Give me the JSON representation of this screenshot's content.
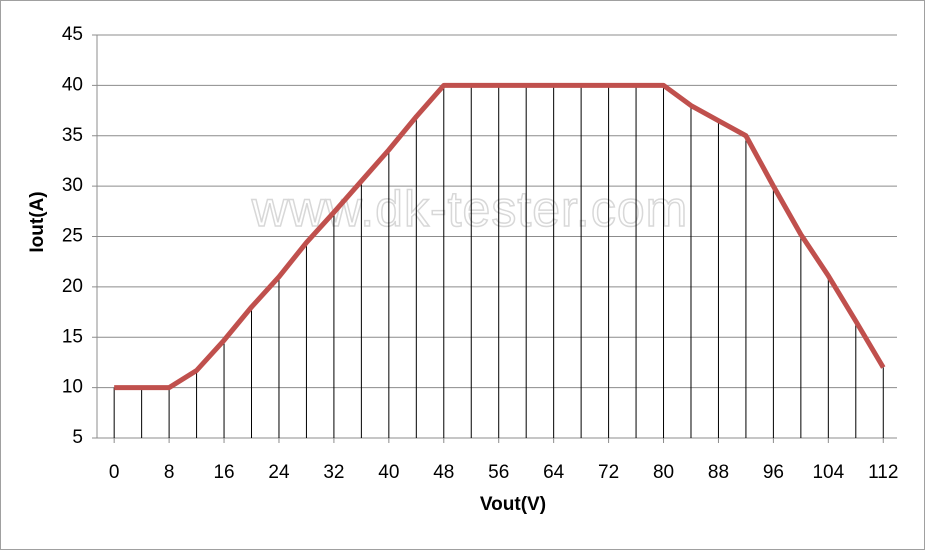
{
  "chart_data": {
    "type": "line",
    "x_label": "Vout(V)",
    "y_label": "Iout(A)",
    "watermark": "www.dk-tester.com",
    "x": [
      0,
      4,
      8,
      12,
      16,
      20,
      24,
      28,
      32,
      36,
      40,
      44,
      48,
      52,
      56,
      60,
      64,
      68,
      72,
      76,
      80,
      84,
      88,
      92,
      96,
      100,
      104,
      108,
      112
    ],
    "series": [
      {
        "name": "Iout(A)",
        "color": "#c0504d",
        "values": [
          10,
          10,
          10,
          11.7,
          14.7,
          18,
          21,
          24.4,
          27.4,
          30.5,
          33.6,
          36.9,
          40,
          40,
          40,
          40,
          40,
          40,
          40,
          40,
          40,
          38,
          36.5,
          35,
          30,
          25.2,
          21.1,
          16.6,
          12
        ]
      }
    ],
    "xlim": [
      -2.5,
      114
    ],
    "xticks": [
      0,
      8,
      16,
      24,
      32,
      40,
      48,
      56,
      64,
      72,
      80,
      88,
      96,
      104,
      112
    ],
    "ylim": [
      5,
      45
    ],
    "yticks": [
      5,
      10,
      15,
      20,
      25,
      30,
      35,
      40,
      45
    ],
    "grid": true,
    "drop_lines": true
  }
}
